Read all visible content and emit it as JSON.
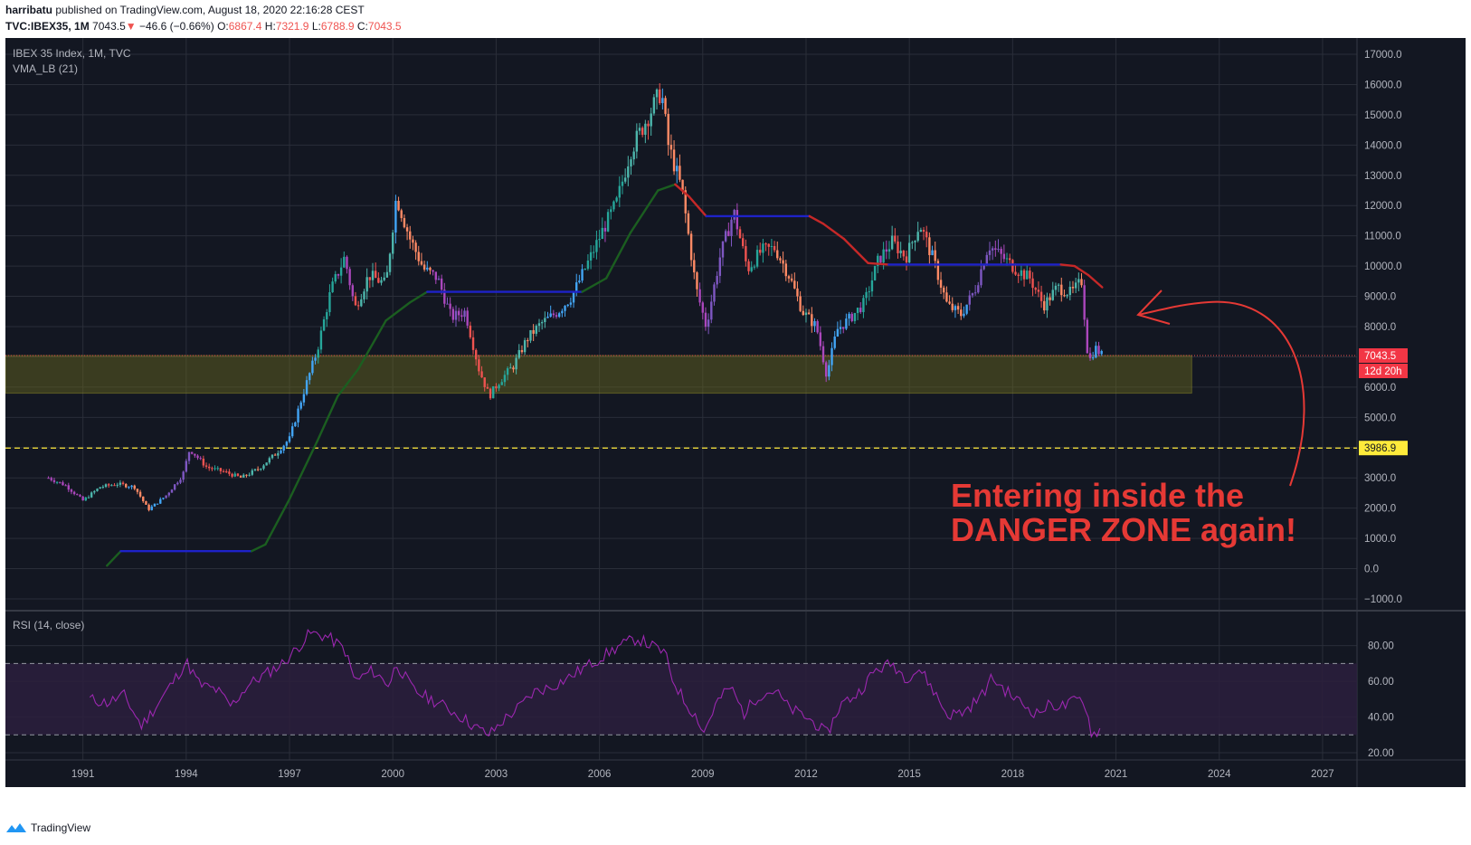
{
  "header": {
    "author": "harribatu",
    "published_text": "published on TradingView.com, August 18, 2020 22:16:28 CEST",
    "symbol_label": "TVC:IBEX35, 1M",
    "last": "7043.5",
    "change_arrow": "▼",
    "change": "−46.6 (−0.66%)",
    "o_label": "O:",
    "o": "6867.4",
    "h_label": "H:",
    "h": "7321.9",
    "l_label": "L:",
    "l": "6788.9",
    "c_label": "C:",
    "c": "7043.5"
  },
  "legend": {
    "main_title": "IBEX 35 Index, 1M, TVC",
    "indicator": "VMA_LB (21)",
    "rsi_title": "RSI (14, close)"
  },
  "annotation": {
    "line1": "Entering inside the",
    "line2": "DANGER ZONE again!"
  },
  "price_tags": {
    "last_price": "7043.5",
    "countdown": "12d 20h",
    "support_level": "3986.9"
  },
  "footer": {
    "brand": "TradingView"
  },
  "colors": {
    "background": "#131722",
    "grid": "#2a2e39",
    "zone_fill": "#6b6a1e",
    "annotation": "#e53935",
    "support_line": "#ffeb3b",
    "rsi_band": "#2b1f3d",
    "rsi_line": "#9c27b0",
    "vma_up": "#1b5e20",
    "vma_flat": "#1e22c8",
    "vma_down": "#c62828"
  },
  "chart_data": [
    {
      "type": "candlestick",
      "title": "IBEX 35 Index, 1M, TVC",
      "y_ticks": [
        "−1000.0",
        "0.0",
        "1000.0",
        "2000.0",
        "3000.0",
        "4000.0",
        "5000.0",
        "6000.0",
        "7000.0",
        "8000.0",
        "9000.0",
        "10000.0",
        "11000.0",
        "12000.0",
        "13000.0",
        "14000.0",
        "15000.0",
        "16000.0",
        "17000.0"
      ],
      "x_ticks": [
        "1991",
        "1994",
        "1997",
        "2000",
        "2003",
        "2006",
        "2009",
        "2012",
        "2015",
        "2018",
        "2021",
        "2024",
        "2027"
      ],
      "ylim": [
        -1000,
        17000
      ],
      "xlim": [
        1988.75,
        2028.0
      ],
      "zone": {
        "from": 5800,
        "to": 7043.5,
        "x_start": 1988.75,
        "x_end": 2023.2
      },
      "support_line": 3986.9,
      "last_price": 7043.5,
      "series_price": [
        [
          1990.0,
          3000
        ],
        [
          1990.5,
          2750
        ],
        [
          1991.0,
          2250
        ],
        [
          1991.5,
          2700
        ],
        [
          1992.0,
          2800
        ],
        [
          1992.5,
          2700
        ],
        [
          1992.9,
          1950
        ],
        [
          1993.4,
          2400
        ],
        [
          1993.9,
          3100
        ],
        [
          1994.1,
          3950
        ],
        [
          1994.6,
          3350
        ],
        [
          1995.1,
          3200
        ],
        [
          1995.6,
          3000
        ],
        [
          1996.1,
          3300
        ],
        [
          1996.6,
          3800
        ],
        [
          1997.0,
          4300
        ],
        [
          1997.4,
          5800
        ],
        [
          1997.8,
          7200
        ],
        [
          1998.2,
          9200
        ],
        [
          1998.6,
          10300
        ],
        [
          1998.9,
          8600
        ],
        [
          1999.3,
          9700
        ],
        [
          1999.8,
          9400
        ],
        [
          2000.1,
          12300
        ],
        [
          2000.5,
          10900
        ],
        [
          2000.9,
          9900
        ],
        [
          2001.3,
          9600
        ],
        [
          2001.7,
          8300
        ],
        [
          2002.1,
          8500
        ],
        [
          2002.5,
          6600
        ],
        [
          2002.8,
          5700
        ],
        [
          2003.1,
          6200
        ],
        [
          2003.5,
          6700
        ],
        [
          2003.9,
          7600
        ],
        [
          2004.3,
          8100
        ],
        [
          2004.8,
          8500
        ],
        [
          2005.2,
          9000
        ],
        [
          2005.7,
          10200
        ],
        [
          2006.1,
          11200
        ],
        [
          2006.5,
          12100
        ],
        [
          2006.9,
          13800
        ],
        [
          2007.3,
          14700
        ],
        [
          2007.8,
          15800
        ],
        [
          2008.0,
          14000
        ],
        [
          2008.4,
          12500
        ],
        [
          2008.8,
          9300
        ],
        [
          2009.1,
          8000
        ],
        [
          2009.5,
          10300
        ],
        [
          2009.9,
          11800
        ],
        [
          2010.3,
          9900
        ],
        [
          2010.7,
          10500
        ],
        [
          2011.1,
          10600
        ],
        [
          2011.5,
          9700
        ],
        [
          2011.9,
          8500
        ],
        [
          2012.3,
          8000
        ],
        [
          2012.6,
          6400
        ],
        [
          2012.9,
          7900
        ],
        [
          2013.3,
          8300
        ],
        [
          2013.7,
          8800
        ],
        [
          2014.1,
          10200
        ],
        [
          2014.5,
          10800
        ],
        [
          2014.9,
          10300
        ],
        [
          2015.3,
          11400
        ],
        [
          2015.7,
          10200
        ],
        [
          2016.1,
          8700
        ],
        [
          2016.5,
          8400
        ],
        [
          2016.9,
          9200
        ],
        [
          2017.3,
          10700
        ],
        [
          2017.7,
          10300
        ],
        [
          2018.1,
          9900
        ],
        [
          2018.5,
          9600
        ],
        [
          2018.9,
          8700
        ],
        [
          2019.3,
          9300
        ],
        [
          2019.7,
          9100
        ],
        [
          2020.0,
          9500
        ],
        [
          2020.2,
          6800
        ],
        [
          2020.4,
          7300
        ],
        [
          2020.6,
          7040
        ]
      ],
      "series_vma": {
        "name": "VMA_LB (21)",
        "values": [
          [
            1991.7,
            100
          ],
          [
            1992.1,
            580
          ],
          [
            1995.9,
            580
          ],
          [
            1996.3,
            800
          ],
          [
            1997.0,
            2300
          ],
          [
            1997.8,
            4200
          ],
          [
            1998.4,
            5700
          ],
          [
            1999.0,
            6600
          ],
          [
            1999.8,
            8200
          ],
          [
            2000.5,
            8800
          ],
          [
            2001.0,
            9150
          ],
          [
            2005.5,
            9150
          ],
          [
            2006.2,
            9600
          ],
          [
            2006.9,
            11100
          ],
          [
            2007.7,
            12500
          ],
          [
            2008.2,
            12700
          ],
          [
            2008.6,
            12300
          ],
          [
            2009.1,
            11650
          ],
          [
            2012.1,
            11650
          ],
          [
            2012.5,
            11400
          ],
          [
            2013.1,
            10900
          ],
          [
            2013.8,
            10100
          ],
          [
            2014.4,
            10050
          ],
          [
            2017.9,
            10050
          ],
          [
            2019.4,
            10050
          ],
          [
            2019.8,
            10000
          ],
          [
            2020.2,
            9700
          ],
          [
            2020.6,
            9300
          ]
        ]
      }
    },
    {
      "type": "line",
      "title": "RSI (14, close)",
      "y_ticks": [
        "20.00",
        "40.00",
        "60.00",
        "80.00"
      ],
      "ylim": [
        20,
        95
      ],
      "levels": [
        30,
        70
      ],
      "values": [
        [
          1991.2,
          50
        ],
        [
          1991.7,
          48
        ],
        [
          1992.2,
          52
        ],
        [
          1992.7,
          35
        ],
        [
          1993.2,
          48
        ],
        [
          1993.7,
          62
        ],
        [
          1994.0,
          71
        ],
        [
          1994.4,
          58
        ],
        [
          1994.9,
          55
        ],
        [
          1995.3,
          46
        ],
        [
          1995.8,
          58
        ],
        [
          1996.3,
          64
        ],
        [
          1996.8,
          70
        ],
        [
          1997.2,
          78
        ],
        [
          1997.6,
          87
        ],
        [
          1998.1,
          85
        ],
        [
          1998.6,
          78
        ],
        [
          1998.9,
          60
        ],
        [
          1999.4,
          66
        ],
        [
          1999.9,
          58
        ],
        [
          2000.1,
          70
        ],
        [
          2000.6,
          55
        ],
        [
          2001.0,
          51
        ],
        [
          2001.5,
          46
        ],
        [
          2002.0,
          40
        ],
        [
          2002.5,
          33
        ],
        [
          2002.8,
          30
        ],
        [
          2003.2,
          38
        ],
        [
          2003.7,
          46
        ],
        [
          2004.1,
          54
        ],
        [
          2004.6,
          57
        ],
        [
          2005.1,
          62
        ],
        [
          2005.6,
          68
        ],
        [
          2006.1,
          74
        ],
        [
          2006.6,
          80
        ],
        [
          2007.1,
          84
        ],
        [
          2007.5,
          80
        ],
        [
          2007.9,
          76
        ],
        [
          2008.1,
          62
        ],
        [
          2008.5,
          48
        ],
        [
          2008.9,
          38
        ],
        [
          2009.0,
          30
        ],
        [
          2009.4,
          48
        ],
        [
          2009.8,
          57
        ],
        [
          2010.2,
          42
        ],
        [
          2010.6,
          52
        ],
        [
          2011.1,
          55
        ],
        [
          2011.5,
          45
        ],
        [
          2011.9,
          41
        ],
        [
          2012.3,
          36
        ],
        [
          2012.6,
          30
        ],
        [
          2013.0,
          47
        ],
        [
          2013.5,
          53
        ],
        [
          2014.0,
          66
        ],
        [
          2014.5,
          70
        ],
        [
          2014.9,
          62
        ],
        [
          2015.3,
          67
        ],
        [
          2015.7,
          55
        ],
        [
          2016.1,
          41
        ],
        [
          2016.6,
          43
        ],
        [
          2017.1,
          52
        ],
        [
          2017.4,
          62
        ],
        [
          2017.9,
          53
        ],
        [
          2018.3,
          47
        ],
        [
          2018.7,
          42
        ],
        [
          2019.1,
          47
        ],
        [
          2019.5,
          46
        ],
        [
          2019.9,
          50
        ],
        [
          2020.1,
          48
        ],
        [
          2020.3,
          30
        ],
        [
          2020.6,
          34
        ]
      ]
    }
  ]
}
